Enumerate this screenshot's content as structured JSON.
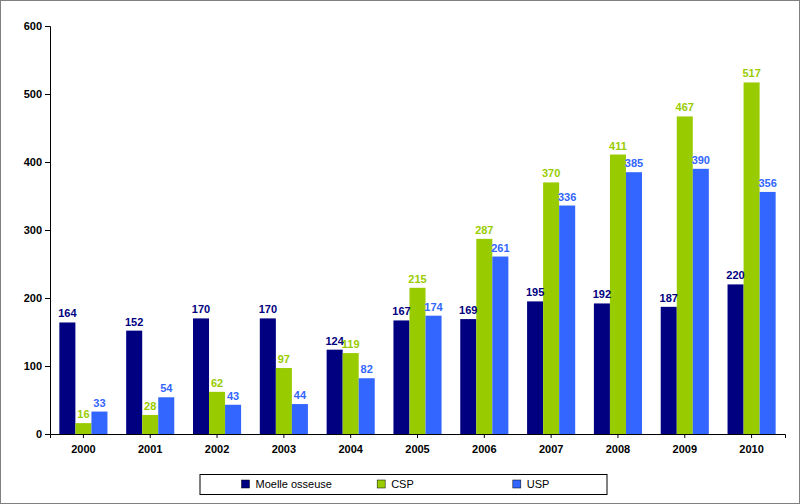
{
  "chart_data": {
    "type": "bar",
    "categories": [
      "2000",
      "2001",
      "2002",
      "2003",
      "2004",
      "2005",
      "2006",
      "2007",
      "2008",
      "2009",
      "2010"
    ],
    "series": [
      {
        "name": "Moelle osseuse",
        "color": "#000080",
        "values": [
          164,
          152,
          170,
          170,
          124,
          167,
          169,
          195,
          192,
          187,
          220
        ]
      },
      {
        "name": "CSP",
        "color": "#99cc00",
        "values": [
          16,
          28,
          62,
          97,
          119,
          215,
          287,
          370,
          411,
          467,
          517
        ]
      },
      {
        "name": "USP",
        "color": "#3366ff",
        "values": [
          33,
          54,
          43,
          44,
          82,
          174,
          261,
          336,
          385,
          390,
          356
        ]
      }
    ],
    "ylim": [
      0,
      600
    ],
    "yticks": [
      0,
      100,
      200,
      300,
      400,
      500,
      600
    ],
    "grid": false,
    "legend": "bottom",
    "data_labels": true
  }
}
